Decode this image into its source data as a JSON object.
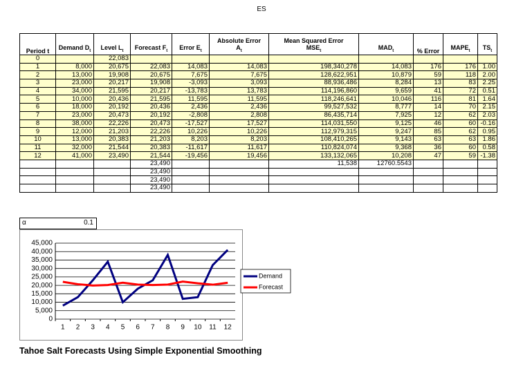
{
  "header": {
    "title": "ES"
  },
  "table": {
    "headers": [
      {
        "title": "Period t"
      },
      {
        "title": "Demand",
        "symbol": "D",
        "sub": "t"
      },
      {
        "title": "Level",
        "symbol": "L",
        "sub": "t"
      },
      {
        "title": "Forecast",
        "symbol": "F",
        "sub": "t"
      },
      {
        "title": "Error",
        "symbol": "E",
        "sub": "t"
      },
      {
        "title": "Absolute Error",
        "symbol": "A",
        "sub": "t"
      },
      {
        "title": "Mean Squared Error",
        "symbol": "MSE",
        "sub": "t"
      },
      {
        "symbol": "MAD",
        "sub": "t"
      },
      {
        "title": "% Error"
      },
      {
        "symbol": "MAPE",
        "sub": "t"
      },
      {
        "symbol": "TS",
        "sub": "t"
      }
    ],
    "rows": [
      [
        "0",
        null,
        "22,083",
        null,
        null,
        null,
        null,
        null,
        null,
        null,
        null
      ],
      [
        "1",
        "8,000",
        "20,675",
        "22,083",
        "14,083",
        "14,083",
        "198,340,278",
        "14,083",
        "176",
        "176",
        "1.00"
      ],
      [
        "2",
        "13,000",
        "19,908",
        "20,675",
        "7,675",
        "7,675",
        "128,622,951",
        "10,879",
        "59",
        "118",
        "2.00"
      ],
      [
        "3",
        "23,000",
        "20,217",
        "19,908",
        "-3,093",
        "3,093",
        "88,936,486",
        "8,284",
        "13",
        "83",
        "2.25"
      ],
      [
        "4",
        "34,000",
        "21,595",
        "20,217",
        "-13,783",
        "13,783",
        "114,196,860",
        "9,659",
        "41",
        "72",
        "0.51"
      ],
      [
        "5",
        "10,000",
        "20,436",
        "21,595",
        "11,595",
        "11,595",
        "118,246,641",
        "10,046",
        "116",
        "81",
        "1.64"
      ],
      [
        "6",
        "18,000",
        "20,192",
        "20,436",
        "2,436",
        "2,436",
        "99,527,532",
        "8,777",
        "14",
        "70",
        "2.15"
      ],
      [
        "7",
        "23,000",
        "20,473",
        "20,192",
        "-2,808",
        "2,808",
        "86,435,714",
        "7,925",
        "12",
        "62",
        "2.03"
      ],
      [
        "8",
        "38,000",
        "22,226",
        "20,473",
        "-17,527",
        "17,527",
        "114,031,550",
        "9,125",
        "46",
        "60",
        "-0.16"
      ],
      [
        "9",
        "12,000",
        "21,203",
        "22,226",
        "10,226",
        "10,226",
        "112,979,315",
        "9,247",
        "85",
        "62",
        "0.95"
      ],
      [
        "10",
        "13,000",
        "20,383",
        "21,203",
        "8,203",
        "8,203",
        "108,410,265",
        "9,143",
        "63",
        "63",
        "1.86"
      ],
      [
        "11",
        "32,000",
        "21,544",
        "20,383",
        "-11,617",
        "11,617",
        "110,824,074",
        "9,368",
        "36",
        "60",
        "0.58"
      ],
      [
        "12",
        "41,000",
        "23,490",
        "21,544",
        "-19,456",
        "19,456",
        "133,132,065",
        "10,208",
        "47",
        "59",
        "-1.38"
      ],
      [
        null,
        null,
        null,
        "23,490",
        null,
        null,
        "11,538",
        "12760.5543",
        null,
        null,
        null
      ],
      [
        null,
        null,
        null,
        "23,490",
        null,
        null,
        null,
        null,
        null,
        null,
        null
      ],
      [
        null,
        null,
        null,
        "23,490",
        null,
        null,
        null,
        null,
        null,
        null,
        null
      ],
      [
        null,
        null,
        null,
        "23,490",
        null,
        null,
        null,
        null,
        null,
        null,
        null
      ]
    ]
  },
  "alpha": {
    "label": "α",
    "value": "0.1"
  },
  "chart_data": {
    "type": "line",
    "categories": [
      1,
      2,
      3,
      4,
      5,
      6,
      7,
      8,
      9,
      10,
      11,
      12
    ],
    "series": [
      {
        "name": "Demand",
        "color": "#000080",
        "values": [
          8000,
          13000,
          23000,
          34000,
          10000,
          18000,
          23000,
          38000,
          12000,
          13000,
          32000,
          41000
        ]
      },
      {
        "name": "Forecast",
        "color": "#ff0000",
        "values": [
          22083,
          20675,
          19908,
          20217,
          21595,
          20436,
          20192,
          20473,
          22226,
          21203,
          20383,
          21544
        ]
      }
    ],
    "ylim": [
      0,
      45000
    ],
    "yticks": [
      0,
      {
        "value": 5000,
        "label": "5,000"
      },
      {
        "value": 10000,
        "label": "10,000"
      },
      {
        "value": 15000,
        "label": "15,000"
      },
      {
        "value": 20000,
        "label": "20,000"
      },
      {
        "value": 25000,
        "label": "25,000"
      },
      {
        "value": 30000,
        "label": "30,000"
      },
      {
        "value": 35000,
        "label": "35,000"
      },
      {
        "value": 40000,
        "label": "40,000"
      },
      {
        "value": 45000,
        "label": "45,000"
      }
    ],
    "grid": true,
    "legend": "right"
  },
  "caption": "Tahoe Salt Forecasts Using Simple Exponential Smoothing"
}
